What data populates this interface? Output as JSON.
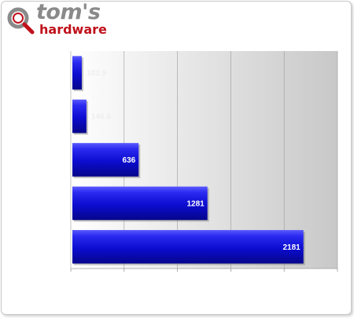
{
  "logo": {
    "icon": "magnifier-icon",
    "line1": "tom's",
    "line2": "hardware",
    "line1_color": "#8a8a8a",
    "line2_color": "#c0111b"
  },
  "chart_data": {
    "type": "bar",
    "orientation": "horizontal",
    "categories": [
      "",
      "",
      "",
      "",
      ""
    ],
    "values": [
      102.9,
      146.6,
      636,
      1281,
      2181
    ],
    "data_labels": [
      "102.9",
      "146.6",
      "636",
      "1281",
      "2181"
    ],
    "xlim": [
      0,
      2500
    ],
    "grid": true,
    "legend": "none",
    "title": "",
    "xlabel": "",
    "ylabel": "",
    "bar_color": "#1a1ad8",
    "background_gradient": [
      "#ffffff",
      "#c8c8c8"
    ]
  }
}
